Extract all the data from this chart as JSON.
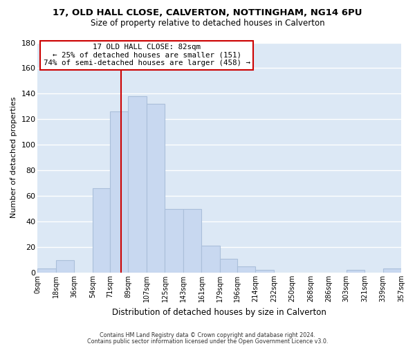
{
  "title1": "17, OLD HALL CLOSE, CALVERTON, NOTTINGHAM, NG14 6PU",
  "title2": "Size of property relative to detached houses in Calverton",
  "xlabel": "Distribution of detached houses by size in Calverton",
  "ylabel": "Number of detached properties",
  "bar_color": "#c8d8f0",
  "bar_edge_color": "#aabfda",
  "axes_bg_color": "#dce8f5",
  "fig_bg_color": "#ffffff",
  "grid_color": "#ffffff",
  "bins": [
    0,
    18,
    36,
    54,
    71,
    89,
    107,
    125,
    143,
    161,
    179,
    196,
    214,
    232,
    250,
    268,
    286,
    303,
    321,
    339,
    357
  ],
  "counts": [
    3,
    10,
    0,
    66,
    126,
    138,
    132,
    50,
    50,
    21,
    11,
    5,
    2,
    0,
    0,
    0,
    0,
    2,
    0,
    3
  ],
  "tick_labels": [
    "0sqm",
    "18sqm",
    "36sqm",
    "54sqm",
    "71sqm",
    "89sqm",
    "107sqm",
    "125sqm",
    "143sqm",
    "161sqm",
    "179sqm",
    "196sqm",
    "214sqm",
    "232sqm",
    "250sqm",
    "268sqm",
    "286sqm",
    "303sqm",
    "321sqm",
    "339sqm",
    "357sqm"
  ],
  "ylim": [
    0,
    180
  ],
  "yticks": [
    0,
    20,
    40,
    60,
    80,
    100,
    120,
    140,
    160,
    180
  ],
  "vline_x": 82,
  "vline_color": "#cc0000",
  "annotation_title": "17 OLD HALL CLOSE: 82sqm",
  "annotation_line1": "← 25% of detached houses are smaller (151)",
  "annotation_line2": "74% of semi-detached houses are larger (458) →",
  "footer1": "Contains HM Land Registry data © Crown copyright and database right 2024.",
  "footer2": "Contains public sector information licensed under the Open Government Licence v3.0."
}
